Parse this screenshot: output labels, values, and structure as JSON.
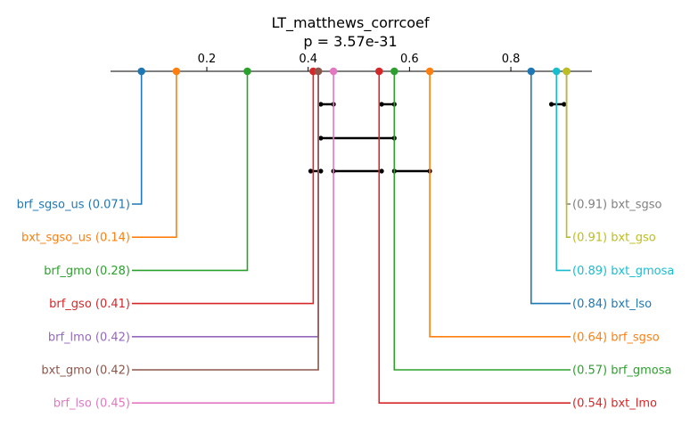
{
  "chart_data": {
    "type": "critical-difference-diagram",
    "title": "LT_matthews_corrcoef",
    "subtitle": "p = 3.57e-31",
    "axis": {
      "range": [
        0.01,
        0.96
      ],
      "ticks": [
        0.2,
        0.4,
        0.6,
        0.8
      ],
      "tick_labels": [
        "0.2",
        "0.4",
        "0.6",
        "0.8"
      ]
    },
    "left_labels": [
      {
        "name": "brf_sgso_us",
        "value": 0.071,
        "text": "brf_sgso_us (0.071)",
        "color": "#1f77b4"
      },
      {
        "name": "bxt_sgso_us",
        "value": 0.14,
        "text": "bxt_sgso_us (0.14)",
        "color": "#ff7f0e"
      },
      {
        "name": "brf_gmo",
        "value": 0.28,
        "text": "brf_gmo (0.28)",
        "color": "#2ca02c"
      },
      {
        "name": "brf_gso",
        "value": 0.41,
        "text": "brf_gso (0.41)",
        "color": "#d62728"
      },
      {
        "name": "brf_lmo",
        "value": 0.42,
        "text": "brf_lmo (0.42)",
        "color": "#9467bd"
      },
      {
        "name": "bxt_gmo",
        "value": 0.42,
        "text": "bxt_gmo (0.42)",
        "color": "#8c564b"
      },
      {
        "name": "brf_lso",
        "value": 0.45,
        "text": "brf_lso (0.45)",
        "color": "#e377c2"
      }
    ],
    "right_labels": [
      {
        "name": "bxt_sgso",
        "value": 0.91,
        "text": "(0.91) bxt_sgso",
        "color": "#7f7f7f"
      },
      {
        "name": "bxt_gso",
        "value": 0.91,
        "text": "(0.91) bxt_gso",
        "color": "#bcbd22"
      },
      {
        "name": "bxt_gmosa",
        "value": 0.89,
        "text": "(0.89) bxt_gmosa",
        "color": "#17becf"
      },
      {
        "name": "bxt_lso",
        "value": 0.84,
        "text": "(0.84) bxt_lso",
        "color": "#1f77b4"
      },
      {
        "name": "brf_sgso",
        "value": 0.64,
        "text": "(0.64) brf_sgso",
        "color": "#ff7f0e"
      },
      {
        "name": "brf_gmosa",
        "value": 0.57,
        "text": "(0.57) brf_gmosa",
        "color": "#2ca02c"
      },
      {
        "name": "bxt_lmo",
        "value": 0.54,
        "text": "(0.54) bxt_lmo",
        "color": "#d62728"
      }
    ],
    "cliques": [
      [
        0.88,
        0.905
      ],
      [
        0.425,
        0.45
      ],
      [
        0.545,
        0.57
      ],
      [
        0.425,
        0.57
      ],
      [
        0.405,
        0.425
      ],
      [
        0.45,
        0.545
      ],
      [
        0.57,
        0.64
      ]
    ]
  }
}
